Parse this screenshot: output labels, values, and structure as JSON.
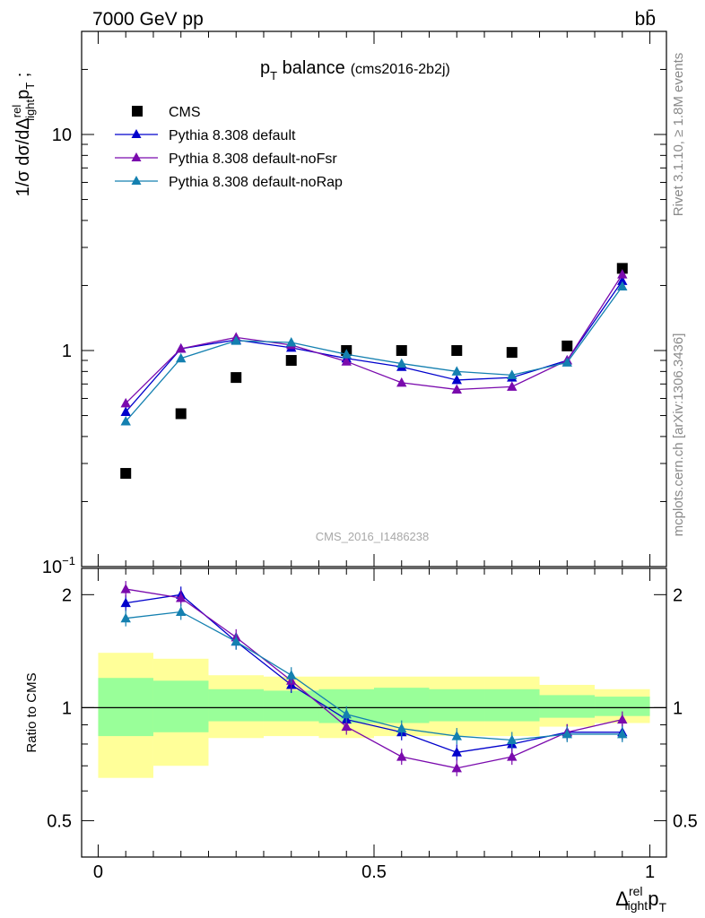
{
  "header": {
    "left": "7000 GeV pp",
    "right": "bb̄"
  },
  "side_labels": {
    "rivet": "Rivet 3.1.10, ≥ 1.8M events",
    "mcplots": "mcplots.cern.ch [arXiv:1306.3436]"
  },
  "chart_data": [
    {
      "type": "scatter",
      "title": "pT balance (cms2016-2b2j)",
      "title_main": "p",
      "title_sub": "T",
      "title_rest": " balance",
      "title_tag": "(cms2016-2b2j)",
      "ylabel": "1/σ dσ/dΔ rel light pT ;",
      "watermark": "CMS_2016_I1486238",
      "yscale": "log",
      "ylim": [
        0.1,
        30
      ],
      "xlim": [
        -0.03,
        1.03
      ],
      "ytick_labels": [
        {
          "value": 10,
          "label": "10"
        },
        {
          "value": 1,
          "label": "1"
        },
        {
          "value": 0.1,
          "label": "10",
          "exponent": "−1"
        }
      ],
      "x": [
        0.05,
        0.15,
        0.25,
        0.35,
        0.45,
        0.55,
        0.65,
        0.75,
        0.85,
        0.95
      ],
      "bin_edges": [
        0,
        0.1,
        0.2,
        0.3,
        0.4,
        0.5,
        0.6,
        0.7,
        0.8,
        0.9,
        1.0
      ],
      "legend_position": "top-left",
      "series": [
        {
          "name": "CMS",
          "marker": "square",
          "color": "#000000",
          "values": [
            0.27,
            0.51,
            0.75,
            0.9,
            1.0,
            1.0,
            1.0,
            0.98,
            1.05,
            2.4
          ]
        },
        {
          "name": "Pythia 8.308 default",
          "marker": "triangle",
          "color": "#0000cc",
          "values": [
            0.52,
            1.02,
            1.12,
            1.03,
            0.92,
            0.84,
            0.73,
            0.75,
            0.9,
            2.1
          ]
        },
        {
          "name": "Pythia 8.308 default-noFsr",
          "marker": "triangle",
          "color": "#7a0aad",
          "values": [
            0.57,
            1.02,
            1.15,
            1.06,
            0.89,
            0.71,
            0.66,
            0.68,
            0.9,
            2.25
          ]
        },
        {
          "name": "Pythia 8.308 default-noRap",
          "marker": "triangle",
          "color": "#1480b0",
          "values": [
            0.47,
            0.92,
            1.11,
            1.09,
            0.96,
            0.87,
            0.8,
            0.77,
            0.88,
            1.98
          ]
        }
      ]
    },
    {
      "type": "scatter",
      "ylabel": "Ratio to CMS",
      "xlabel": "Δ rel light pT",
      "yscale": "log",
      "ylim": [
        0.4,
        2.35
      ],
      "xlim": [
        -0.03,
        1.03
      ],
      "ytick_labels": [
        {
          "value": 2,
          "label": "2"
        },
        {
          "value": 1,
          "label": "1"
        },
        {
          "value": 0.5,
          "label": "0.5"
        }
      ],
      "xtick_labels": [
        {
          "value": 0,
          "label": "0"
        },
        {
          "value": 0.5,
          "label": "0.5"
        },
        {
          "value": 1,
          "label": "1"
        }
      ],
      "x": [
        0.05,
        0.15,
        0.25,
        0.35,
        0.45,
        0.55,
        0.65,
        0.75,
        0.85,
        0.95
      ],
      "bands": {
        "bin_edges": [
          0,
          0.1,
          0.2,
          0.3,
          0.4,
          0.5,
          0.6,
          0.7,
          0.8,
          0.9,
          1.0
        ],
        "yellow_low": [
          0.65,
          0.7,
          0.83,
          0.84,
          0.83,
          0.84,
          0.84,
          0.84,
          0.89,
          0.91
        ],
        "yellow_high": [
          1.4,
          1.35,
          1.22,
          1.21,
          1.21,
          1.21,
          1.21,
          1.21,
          1.15,
          1.12
        ],
        "green_low": [
          0.84,
          0.86,
          0.92,
          0.92,
          0.91,
          0.91,
          0.92,
          0.92,
          0.94,
          0.95
        ],
        "green_high": [
          1.2,
          1.18,
          1.12,
          1.11,
          1.12,
          1.13,
          1.12,
          1.12,
          1.08,
          1.07
        ],
        "yellow_color": "#ffff99",
        "green_color": "#99ff99"
      },
      "series": [
        {
          "name": "Pythia 8.308 default",
          "marker": "triangle",
          "color": "#0000cc",
          "values": [
            1.9,
            2.0,
            1.5,
            1.15,
            0.93,
            0.86,
            0.76,
            0.8,
            0.86,
            0.86
          ]
        },
        {
          "name": "Pythia 8.308 default-noFsr",
          "marker": "triangle",
          "color": "#7a0aad",
          "values": [
            2.07,
            1.96,
            1.54,
            1.18,
            0.89,
            0.74,
            0.69,
            0.74,
            0.86,
            0.93
          ]
        },
        {
          "name": "Pythia 8.308 default-noRap",
          "marker": "triangle",
          "color": "#1480b0",
          "values": [
            1.73,
            1.8,
            1.5,
            1.22,
            0.96,
            0.88,
            0.84,
            0.82,
            0.85,
            0.85
          ]
        }
      ]
    }
  ]
}
